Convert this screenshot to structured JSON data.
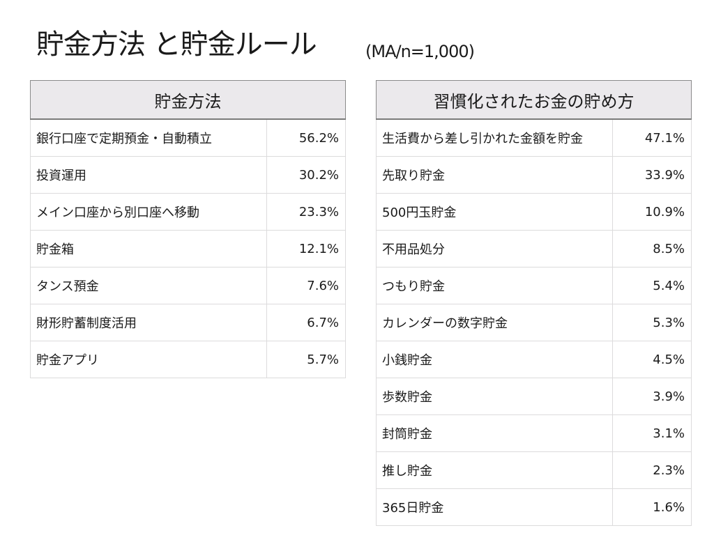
{
  "header": {
    "title": "貯金方法 と貯金ルール",
    "subtitle": "(MA/n=1,000)"
  },
  "tables": [
    {
      "heading": "貯金方法",
      "rows": [
        {
          "label": "銀行口座で定期預金・自動積立",
          "value": "56.2%"
        },
        {
          "label": "投資運用",
          "value": "30.2%"
        },
        {
          "label": "メイン口座から別口座へ移動",
          "value": "23.3%"
        },
        {
          "label": "貯金箱",
          "value": "12.1%"
        },
        {
          "label": "タンス預金",
          "value": "7.6%"
        },
        {
          "label": "財形貯蓄制度活用",
          "value": "6.7%"
        },
        {
          "label": "貯金アプリ",
          "value": "5.7%"
        }
      ]
    },
    {
      "heading": "習慣化されたお金の貯め方",
      "rows": [
        {
          "label": "生活費から差し引かれた金額を貯金",
          "value": "47.1%"
        },
        {
          "label": "先取り貯金",
          "value": "33.9%"
        },
        {
          "label": "500円玉貯金",
          "value": "10.9%"
        },
        {
          "label": "不用品処分",
          "value": "8.5%"
        },
        {
          "label": "つもり貯金",
          "value": "5.4%"
        },
        {
          "label": "カレンダーの数字貯金",
          "value": "5.3%"
        },
        {
          "label": "小銭貯金",
          "value": "4.5%"
        },
        {
          "label": "歩数貯金",
          "value": "3.9%"
        },
        {
          "label": "封筒貯金",
          "value": "3.1%"
        },
        {
          "label": "推し貯金",
          "value": "2.3%"
        },
        {
          "label": "365日貯金",
          "value": "1.6%"
        }
      ]
    }
  ],
  "colors": {
    "header_bg": "#ebe9ec",
    "header_border": "#8a8a8a",
    "cell_border": "#dcdbdc",
    "text": "#1a1a1a"
  }
}
